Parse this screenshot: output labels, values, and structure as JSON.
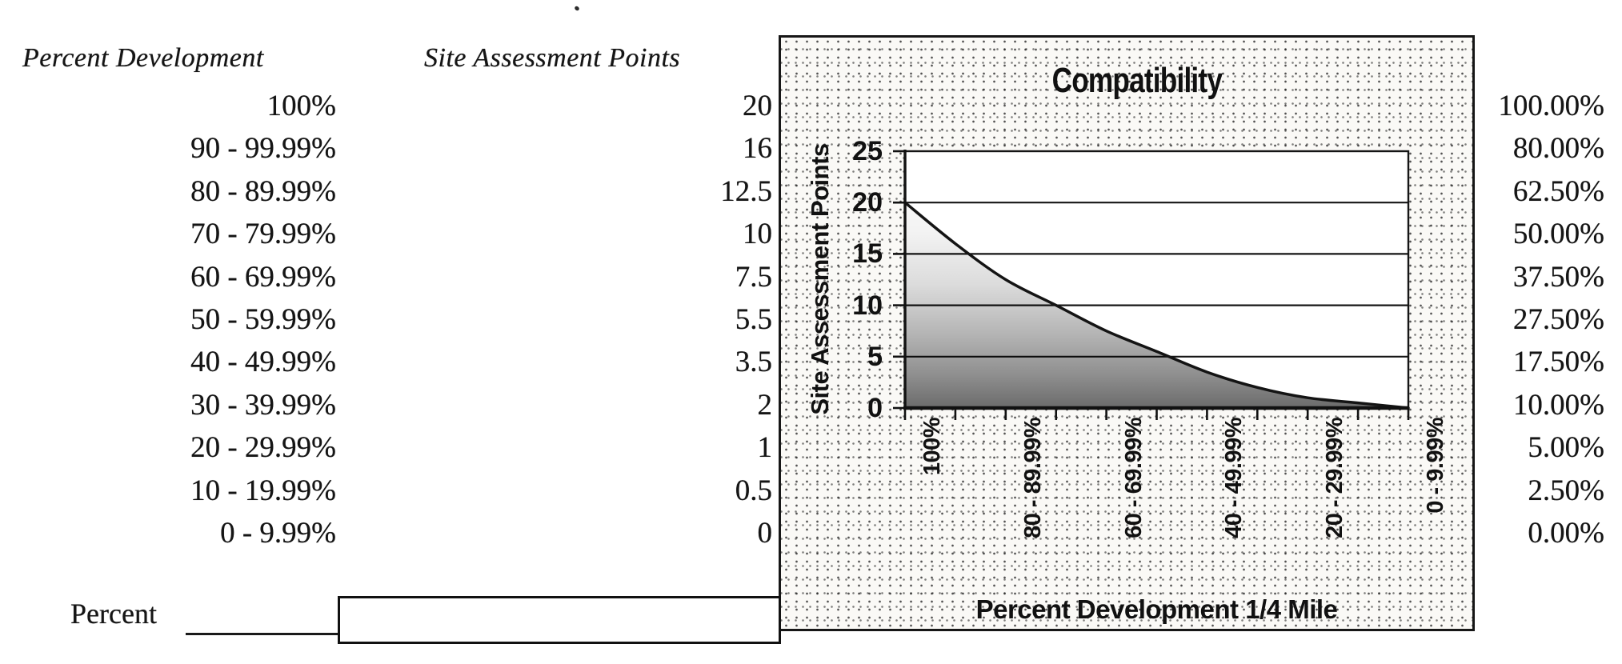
{
  "colors": {
    "ink": "#151515",
    "paper": "#ffffff",
    "chart_bg_stipple": "#faf9f6"
  },
  "table": {
    "col1_header": "Percent Development",
    "col2_header": "Site Assessment Points",
    "rows": [
      {
        "range": "100%",
        "points": "20",
        "percent": "100.00%"
      },
      {
        "range": "90 - 99.99%",
        "points": "16",
        "percent": "80.00%"
      },
      {
        "range": "80 - 89.99%",
        "points": "12.5",
        "percent": "62.50%"
      },
      {
        "range": "70 - 79.99%",
        "points": "10",
        "percent": "50.00%"
      },
      {
        "range": "60 - 69.99%",
        "points": "7.5",
        "percent": "37.50%"
      },
      {
        "range": "50 - 59.99%",
        "points": "5.5",
        "percent": "27.50%"
      },
      {
        "range": "40 - 49.99%",
        "points": "3.5",
        "percent": "17.50%"
      },
      {
        "range": "30 - 39.99%",
        "points": "2",
        "percent": "10.00%"
      },
      {
        "range": "20 - 29.99%",
        "points": "1",
        "percent": "5.00%"
      },
      {
        "range": "10 - 19.99%",
        "points": "0.5",
        "percent": "2.50%"
      },
      {
        "range": "0 - 9.99%",
        "points": "0",
        "percent": "0.00%"
      }
    ]
  },
  "form": {
    "label": "Percent",
    "input_value": ""
  },
  "chart_data": {
    "type": "line",
    "title": "Compatibility",
    "xlabel": "Percent Development 1/4 Mile",
    "ylabel": "Site Assessment Points",
    "categories": [
      "100%",
      "90 - 99.99%",
      "80 - 89.99%",
      "70 - 79.99%",
      "60 - 69.99%",
      "50 - 59.99%",
      "40 - 49.99%",
      "30 - 39.99%",
      "20 - 29.99%",
      "10 - 19.99%",
      "0 - 9.99%"
    ],
    "values": [
      20,
      16,
      12.5,
      10,
      7.5,
      5.5,
      3.5,
      2,
      1,
      0.5,
      0
    ],
    "ylim": [
      0,
      25
    ],
    "y_ticks": [
      25,
      20,
      15,
      10,
      5,
      0
    ],
    "x_tick_labels": [
      {
        "label": "100%",
        "cat": 0
      },
      {
        "label": "80 - 89.99%",
        "cat": 2
      },
      {
        "label": "60 - 69.99%",
        "cat": 4
      },
      {
        "label": "40 - 49.99%",
        "cat": 6
      },
      {
        "label": "20 - 29.99%",
        "cat": 8
      },
      {
        "label": "0 - 9.99%",
        "cat": 10
      }
    ],
    "grid": true,
    "legend": "none",
    "line_color": "#141414",
    "area_fill": "vertical gray gradient under curve, dark at bottom fading to white at top"
  }
}
